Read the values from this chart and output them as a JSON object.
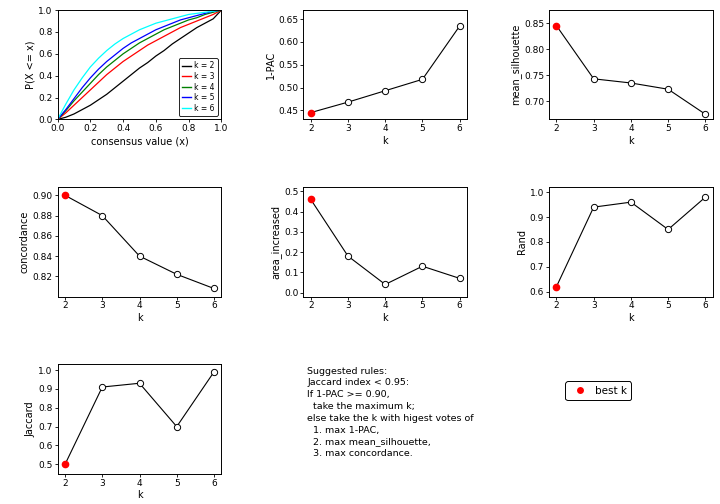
{
  "ecdf_k2": [
    [
      0.0,
      0.05,
      0.1,
      0.15,
      0.2,
      0.25,
      0.3,
      0.35,
      0.4,
      0.45,
      0.5,
      0.55,
      0.6,
      0.65,
      0.7,
      0.75,
      0.8,
      0.85,
      0.9,
      0.95,
      1.0
    ],
    [
      0.0,
      0.02,
      0.05,
      0.09,
      0.13,
      0.18,
      0.23,
      0.29,
      0.35,
      0.41,
      0.47,
      0.52,
      0.58,
      0.63,
      0.69,
      0.74,
      0.79,
      0.84,
      0.88,
      0.92,
      1.0
    ]
  ],
  "ecdf_k3": [
    [
      0.0,
      0.05,
      0.1,
      0.15,
      0.2,
      0.25,
      0.3,
      0.35,
      0.4,
      0.45,
      0.5,
      0.55,
      0.6,
      0.65,
      0.7,
      0.75,
      0.8,
      0.85,
      0.9,
      0.95,
      1.0
    ],
    [
      0.0,
      0.06,
      0.13,
      0.2,
      0.27,
      0.34,
      0.41,
      0.47,
      0.53,
      0.58,
      0.63,
      0.68,
      0.72,
      0.76,
      0.8,
      0.84,
      0.87,
      0.9,
      0.93,
      0.96,
      1.0
    ]
  ],
  "ecdf_k4": [
    [
      0.0,
      0.05,
      0.1,
      0.15,
      0.2,
      0.25,
      0.3,
      0.35,
      0.4,
      0.45,
      0.5,
      0.55,
      0.6,
      0.65,
      0.7,
      0.75,
      0.8,
      0.85,
      0.9,
      0.95,
      1.0
    ],
    [
      0.0,
      0.08,
      0.17,
      0.25,
      0.33,
      0.41,
      0.48,
      0.54,
      0.6,
      0.65,
      0.7,
      0.74,
      0.78,
      0.82,
      0.85,
      0.88,
      0.91,
      0.93,
      0.96,
      0.98,
      1.0
    ]
  ],
  "ecdf_k5": [
    [
      0.0,
      0.05,
      0.1,
      0.15,
      0.2,
      0.25,
      0.3,
      0.35,
      0.4,
      0.45,
      0.5,
      0.55,
      0.6,
      0.65,
      0.7,
      0.75,
      0.8,
      0.85,
      0.9,
      0.95,
      1.0
    ],
    [
      0.0,
      0.09,
      0.19,
      0.29,
      0.38,
      0.46,
      0.53,
      0.59,
      0.65,
      0.7,
      0.74,
      0.78,
      0.82,
      0.85,
      0.88,
      0.91,
      0.93,
      0.95,
      0.97,
      0.99,
      1.0
    ]
  ],
  "ecdf_k6": [
    [
      0.0,
      0.05,
      0.1,
      0.15,
      0.2,
      0.25,
      0.3,
      0.35,
      0.4,
      0.45,
      0.5,
      0.55,
      0.6,
      0.65,
      0.7,
      0.75,
      0.8,
      0.85,
      0.9,
      0.95,
      1.0
    ],
    [
      0.0,
      0.14,
      0.27,
      0.38,
      0.48,
      0.56,
      0.63,
      0.69,
      0.74,
      0.78,
      0.82,
      0.85,
      0.88,
      0.9,
      0.92,
      0.94,
      0.96,
      0.97,
      0.98,
      0.99,
      1.0
    ]
  ],
  "pac_k": [
    2,
    3,
    4,
    5,
    6
  ],
  "pac_1mpac": [
    0.445,
    0.468,
    0.493,
    0.518,
    0.635
  ],
  "pac_best_k": 2,
  "silhouette_k": [
    2,
    3,
    4,
    5,
    6
  ],
  "silhouette_vals": [
    0.845,
    0.743,
    0.735,
    0.723,
    0.675
  ],
  "silhouette_best_k": 2,
  "concordance_k": [
    2,
    3,
    4,
    5,
    6
  ],
  "concordance_vals": [
    0.9,
    0.88,
    0.84,
    0.822,
    0.808
  ],
  "concordance_best_k": 2,
  "area_k": [
    2,
    3,
    4,
    5,
    6
  ],
  "area_vals": [
    0.46,
    0.18,
    0.04,
    0.13,
    0.07
  ],
  "area_best_k": 2,
  "rand_k": [
    2,
    3,
    4,
    5,
    6
  ],
  "rand_vals": [
    0.62,
    0.94,
    0.96,
    0.85,
    0.98
  ],
  "rand_best_k": 2,
  "jaccard_k": [
    2,
    3,
    4,
    5,
    6
  ],
  "jaccard_vals": [
    0.5,
    0.91,
    0.93,
    0.7,
    0.99
  ],
  "jaccard_best_k": 2,
  "best_k_color": "#FF0000",
  "line_color": "black",
  "bg_color": "white",
  "suggested_text": "Suggested rules:\nJaccard index < 0.95:\nIf 1-PAC >= 0.90,\n  take the maximum k;\nelse take the k with higest votes of\n  1. max 1-PAC,\n  2. max mean_silhouette,\n  3. max concordance."
}
